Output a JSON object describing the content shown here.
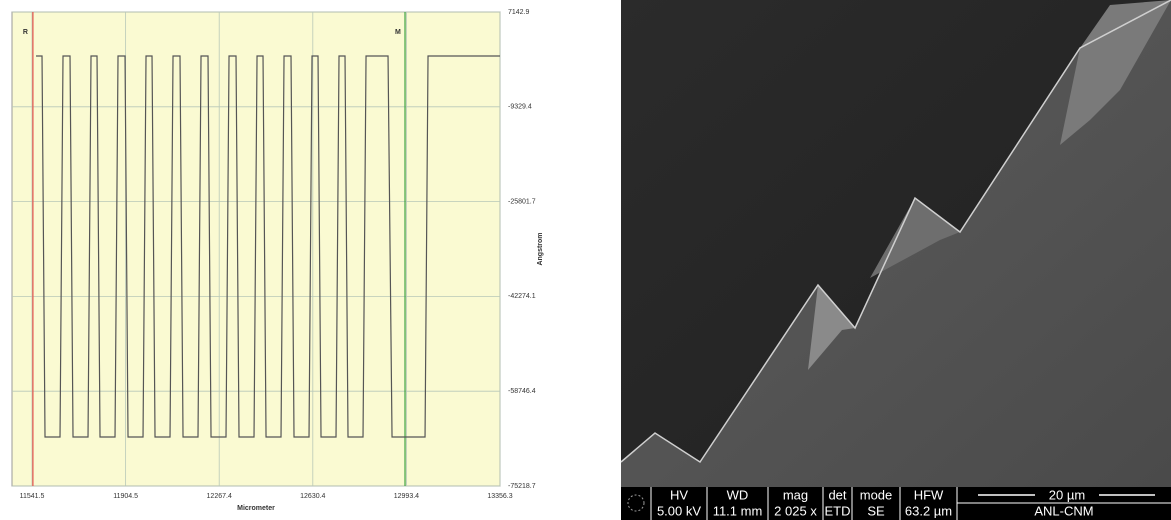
{
  "chart_data": {
    "type": "line",
    "xlabel": "Micrometer",
    "ylabel": "Angstrom",
    "xlim": [
      11463.9,
      13356.3
    ],
    "ylim": [
      -75218.7,
      7142.9
    ],
    "xticks": [
      11541.5,
      11904.5,
      12267.4,
      12630.4,
      12993.4,
      13356.3
    ],
    "yticks": [
      7142.9,
      -9329.4,
      -25801.7,
      -42274.1,
      -58746.4,
      -75218.7
    ],
    "grid": true,
    "background": "#fafad2",
    "markers": [
      {
        "label": "R",
        "x": 11545,
        "color": "#e8534a"
      },
      {
        "label": "M",
        "x": 12988,
        "color": "#3aa040"
      }
    ],
    "series": [
      {
        "color": "#555555",
        "x": [
          11557.0,
          11580.3,
          11591.9,
          11650.1,
          11661.7,
          11688.9,
          11700.5,
          11758.7,
          11770.3,
          11793.6,
          11805.2,
          11863.4,
          11875.0,
          11902.2,
          11913.8,
          11972.0,
          11983.6,
          12006.9,
          12018.5,
          12076.7,
          12088.3,
          12115.4,
          12127.1,
          12185.2,
          12196.9,
          12224.0,
          12235.7,
          12293.8,
          12305.5,
          12332.6,
          12344.2,
          12402.4,
          12414.1,
          12437.3,
          12449.0,
          12507.1,
          12518.8,
          12545.9,
          12557.5,
          12615.7,
          12627.3,
          12650.6,
          12662.2,
          12720.4,
          12732.0,
          12755.3,
          12766.9,
          12825.1,
          12836.8,
          12922.1,
          12937.6,
          13065.6,
          13077.2,
          13356.3
        ],
        "values": [
          -500,
          -500,
          -66700,
          -66700,
          -500,
          -500,
          -66700,
          -66700,
          -500,
          -500,
          -66700,
          -66700,
          -500,
          -500,
          -66700,
          -66700,
          -500,
          -500,
          -66700,
          -66700,
          -500,
          -500,
          -66700,
          -66700,
          -500,
          -500,
          -66700,
          -66700,
          -500,
          -500,
          -66700,
          -66700,
          -500,
          -500,
          -66700,
          -66700,
          -500,
          -500,
          -66700,
          -66700,
          -500,
          -500,
          -66700,
          -66700,
          -500,
          -500,
          -66700,
          -66700,
          -500,
          -500,
          -66700,
          -66700,
          -500,
          -500
        ]
      }
    ]
  },
  "sem_bar": {
    "headers": [
      "HV",
      "WD",
      "mag",
      "det",
      "mode",
      "HFW"
    ],
    "values": [
      "5.00 kV",
      "11.1 mm",
      "2 025 x",
      "ETD",
      "SE",
      "63.2 µm"
    ],
    "scale": "20 µm",
    "lab": "ANL-CNM"
  }
}
